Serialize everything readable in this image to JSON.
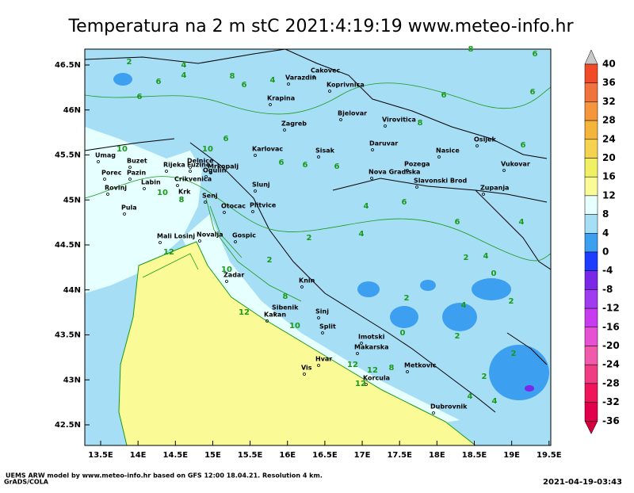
{
  "map": {
    "title": "Temperatura na 2 m stC 2021:4:19:19 www.meteo-info.hr",
    "lon_ticks": [
      {
        "value": 13.5,
        "label": "13.5E"
      },
      {
        "value": 14,
        "label": "14E"
      },
      {
        "value": 14.5,
        "label": "14.5E"
      },
      {
        "value": 15,
        "label": "15E"
      },
      {
        "value": 15.5,
        "label": "15.5E"
      },
      {
        "value": 16,
        "label": "16E"
      },
      {
        "value": 16.5,
        "label": "16.5E"
      },
      {
        "value": 17,
        "label": "17E"
      },
      {
        "value": 17.5,
        "label": "17.5E"
      },
      {
        "value": 18,
        "label": "18E"
      },
      {
        "value": 18.5,
        "label": "18.5E"
      },
      {
        "value": 19,
        "label": "19E"
      },
      {
        "value": 19.5,
        "label": "19.5E"
      }
    ],
    "lat_ticks": [
      {
        "value": 46.5,
        "label": "46.5N"
      },
      {
        "value": 46,
        "label": "46N"
      },
      {
        "value": 45.5,
        "label": "45.5N"
      },
      {
        "value": 45,
        "label": "45N"
      },
      {
        "value": 44.5,
        "label": "44.5N"
      },
      {
        "value": 44,
        "label": "44N"
      },
      {
        "value": 43.5,
        "label": "43.5N"
      },
      {
        "value": 43,
        "label": "43N"
      },
      {
        "value": 42.5,
        "label": "42.5N"
      }
    ],
    "cities": [
      {
        "name": "Cakovec"
      },
      {
        "name": "Varazdin"
      },
      {
        "name": "Koprivnica"
      },
      {
        "name": "Krapina"
      },
      {
        "name": "Bjelovar"
      },
      {
        "name": "Zagreb"
      },
      {
        "name": "Virovitica"
      },
      {
        "name": "Osijek"
      },
      {
        "name": "Karlovac"
      },
      {
        "name": "Sisak"
      },
      {
        "name": "Daruvar"
      },
      {
        "name": "Nasice"
      },
      {
        "name": "Umag"
      },
      {
        "name": "Buzet"
      },
      {
        "name": "Delnice"
      },
      {
        "name": "Rijeka"
      },
      {
        "name": "Fuzine"
      },
      {
        "name": "Mrkopalj"
      },
      {
        "name": "Pozega"
      },
      {
        "name": "Vukovar"
      },
      {
        "name": "Porec"
      },
      {
        "name": "Pazin"
      },
      {
        "name": "Ogulin"
      },
      {
        "name": "Nova Gradiska"
      },
      {
        "name": "Labin"
      },
      {
        "name": "Crikvenica"
      },
      {
        "name": "Slavonski Brod"
      },
      {
        "name": "Rovinj"
      },
      {
        "name": "Slunj"
      },
      {
        "name": "Zupanja"
      },
      {
        "name": "Krk"
      },
      {
        "name": "Senj"
      },
      {
        "name": "Otocac"
      },
      {
        "name": "Plitvice"
      },
      {
        "name": "Pula"
      },
      {
        "name": "Mali Losinj"
      },
      {
        "name": "Novalja"
      },
      {
        "name": "Gospic"
      },
      {
        "name": "Zadar"
      },
      {
        "name": "Knin"
      },
      {
        "name": "Sibenik"
      },
      {
        "name": "Kakan"
      },
      {
        "name": "Sinj"
      },
      {
        "name": "Split"
      },
      {
        "name": "Imotski"
      },
      {
        "name": "Makarska"
      },
      {
        "name": "Hvar"
      },
      {
        "name": "Metkovic"
      },
      {
        "name": "Vis"
      },
      {
        "name": "Korcula"
      },
      {
        "name": "Dubrovnik"
      }
    ],
    "contour_labels": [
      "2",
      "4",
      "6",
      "4",
      "6",
      "4",
      "6",
      "8",
      "6",
      "8",
      "6",
      "6",
      "10",
      "10",
      "10",
      "8",
      "6",
      "6",
      "6",
      "4",
      "6",
      "4",
      "2",
      "12",
      "10",
      "8",
      "2",
      "4",
      "2",
      "0",
      "2",
      "4",
      "2",
      "0",
      "2",
      "12",
      "10",
      "12",
      "12",
      "8",
      "12",
      "4",
      "4",
      "2",
      "6",
      "4",
      "6",
      "8",
      "6",
      "2"
    ],
    "colorbar": {
      "levels": [
        40,
        36,
        32,
        28,
        24,
        20,
        16,
        12,
        8,
        4,
        0,
        -4,
        -8,
        -12,
        -16,
        -20,
        -24,
        -28,
        -32,
        -36
      ],
      "colors": [
        "#c8c8c8",
        "#f04a28",
        "#f0723c",
        "#f5963c",
        "#f5b43c",
        "#f5d250",
        "#f0f064",
        "#fafa96",
        "#e6ffff",
        "#a6def5",
        "#3c9ff0",
        "#1e3cff",
        "#7828e6",
        "#a03cf0",
        "#c83cf0",
        "#e650d2",
        "#f05aaa",
        "#f03c82",
        "#f0145a",
        "#e1004b",
        "#d2003c"
      ]
    },
    "footer_left": "UEMS ARW model by www.meteo-info.hr based on GFS 12:00 18.04.21. Resolution 4 km.",
    "footer_brand": "GrADS/COLA",
    "footer_right": "2021-04-19-03:43"
  }
}
